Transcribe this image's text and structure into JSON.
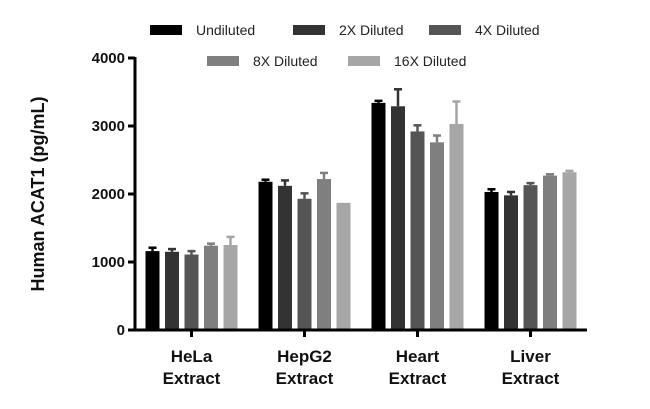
{
  "chart_data": {
    "type": "bar",
    "title": "",
    "xlabel": "",
    "ylabel": "Human ACAT1 (pg/mL)",
    "ylim": [
      0,
      4000
    ],
    "yticks": [
      0,
      1000,
      2000,
      3000,
      4000
    ],
    "categories": [
      [
        "HeLa",
        "Extract"
      ],
      [
        "HepG2",
        "Extract"
      ],
      [
        "Heart",
        "Extract"
      ],
      [
        "Liver",
        "Extract"
      ]
    ],
    "series": [
      {
        "name": "Undiluted",
        "color": "#000000",
        "values": [
          1160,
          2180,
          3340,
          2030
        ],
        "errors": [
          50,
          30,
          30,
          40
        ]
      },
      {
        "name": "2X Diluted",
        "color": "#333333",
        "values": [
          1150,
          2120,
          3290,
          1980
        ],
        "errors": [
          40,
          80,
          250,
          50
        ]
      },
      {
        "name": "4X Diluted",
        "color": "#555555",
        "values": [
          1110,
          1930,
          2920,
          2130
        ],
        "errors": [
          50,
          80,
          90,
          30
        ]
      },
      {
        "name": "8X Diluted",
        "color": "#7f7f7f",
        "values": [
          1240,
          2220,
          2760,
          2270
        ],
        "errors": [
          30,
          90,
          100,
          20
        ]
      },
      {
        "name": "16X Diluted",
        "color": "#a6a6a6",
        "values": [
          1250,
          1870,
          3030,
          2320
        ],
        "errors": [
          120,
          0,
          330,
          20
        ]
      }
    ],
    "legend_position": "top"
  }
}
